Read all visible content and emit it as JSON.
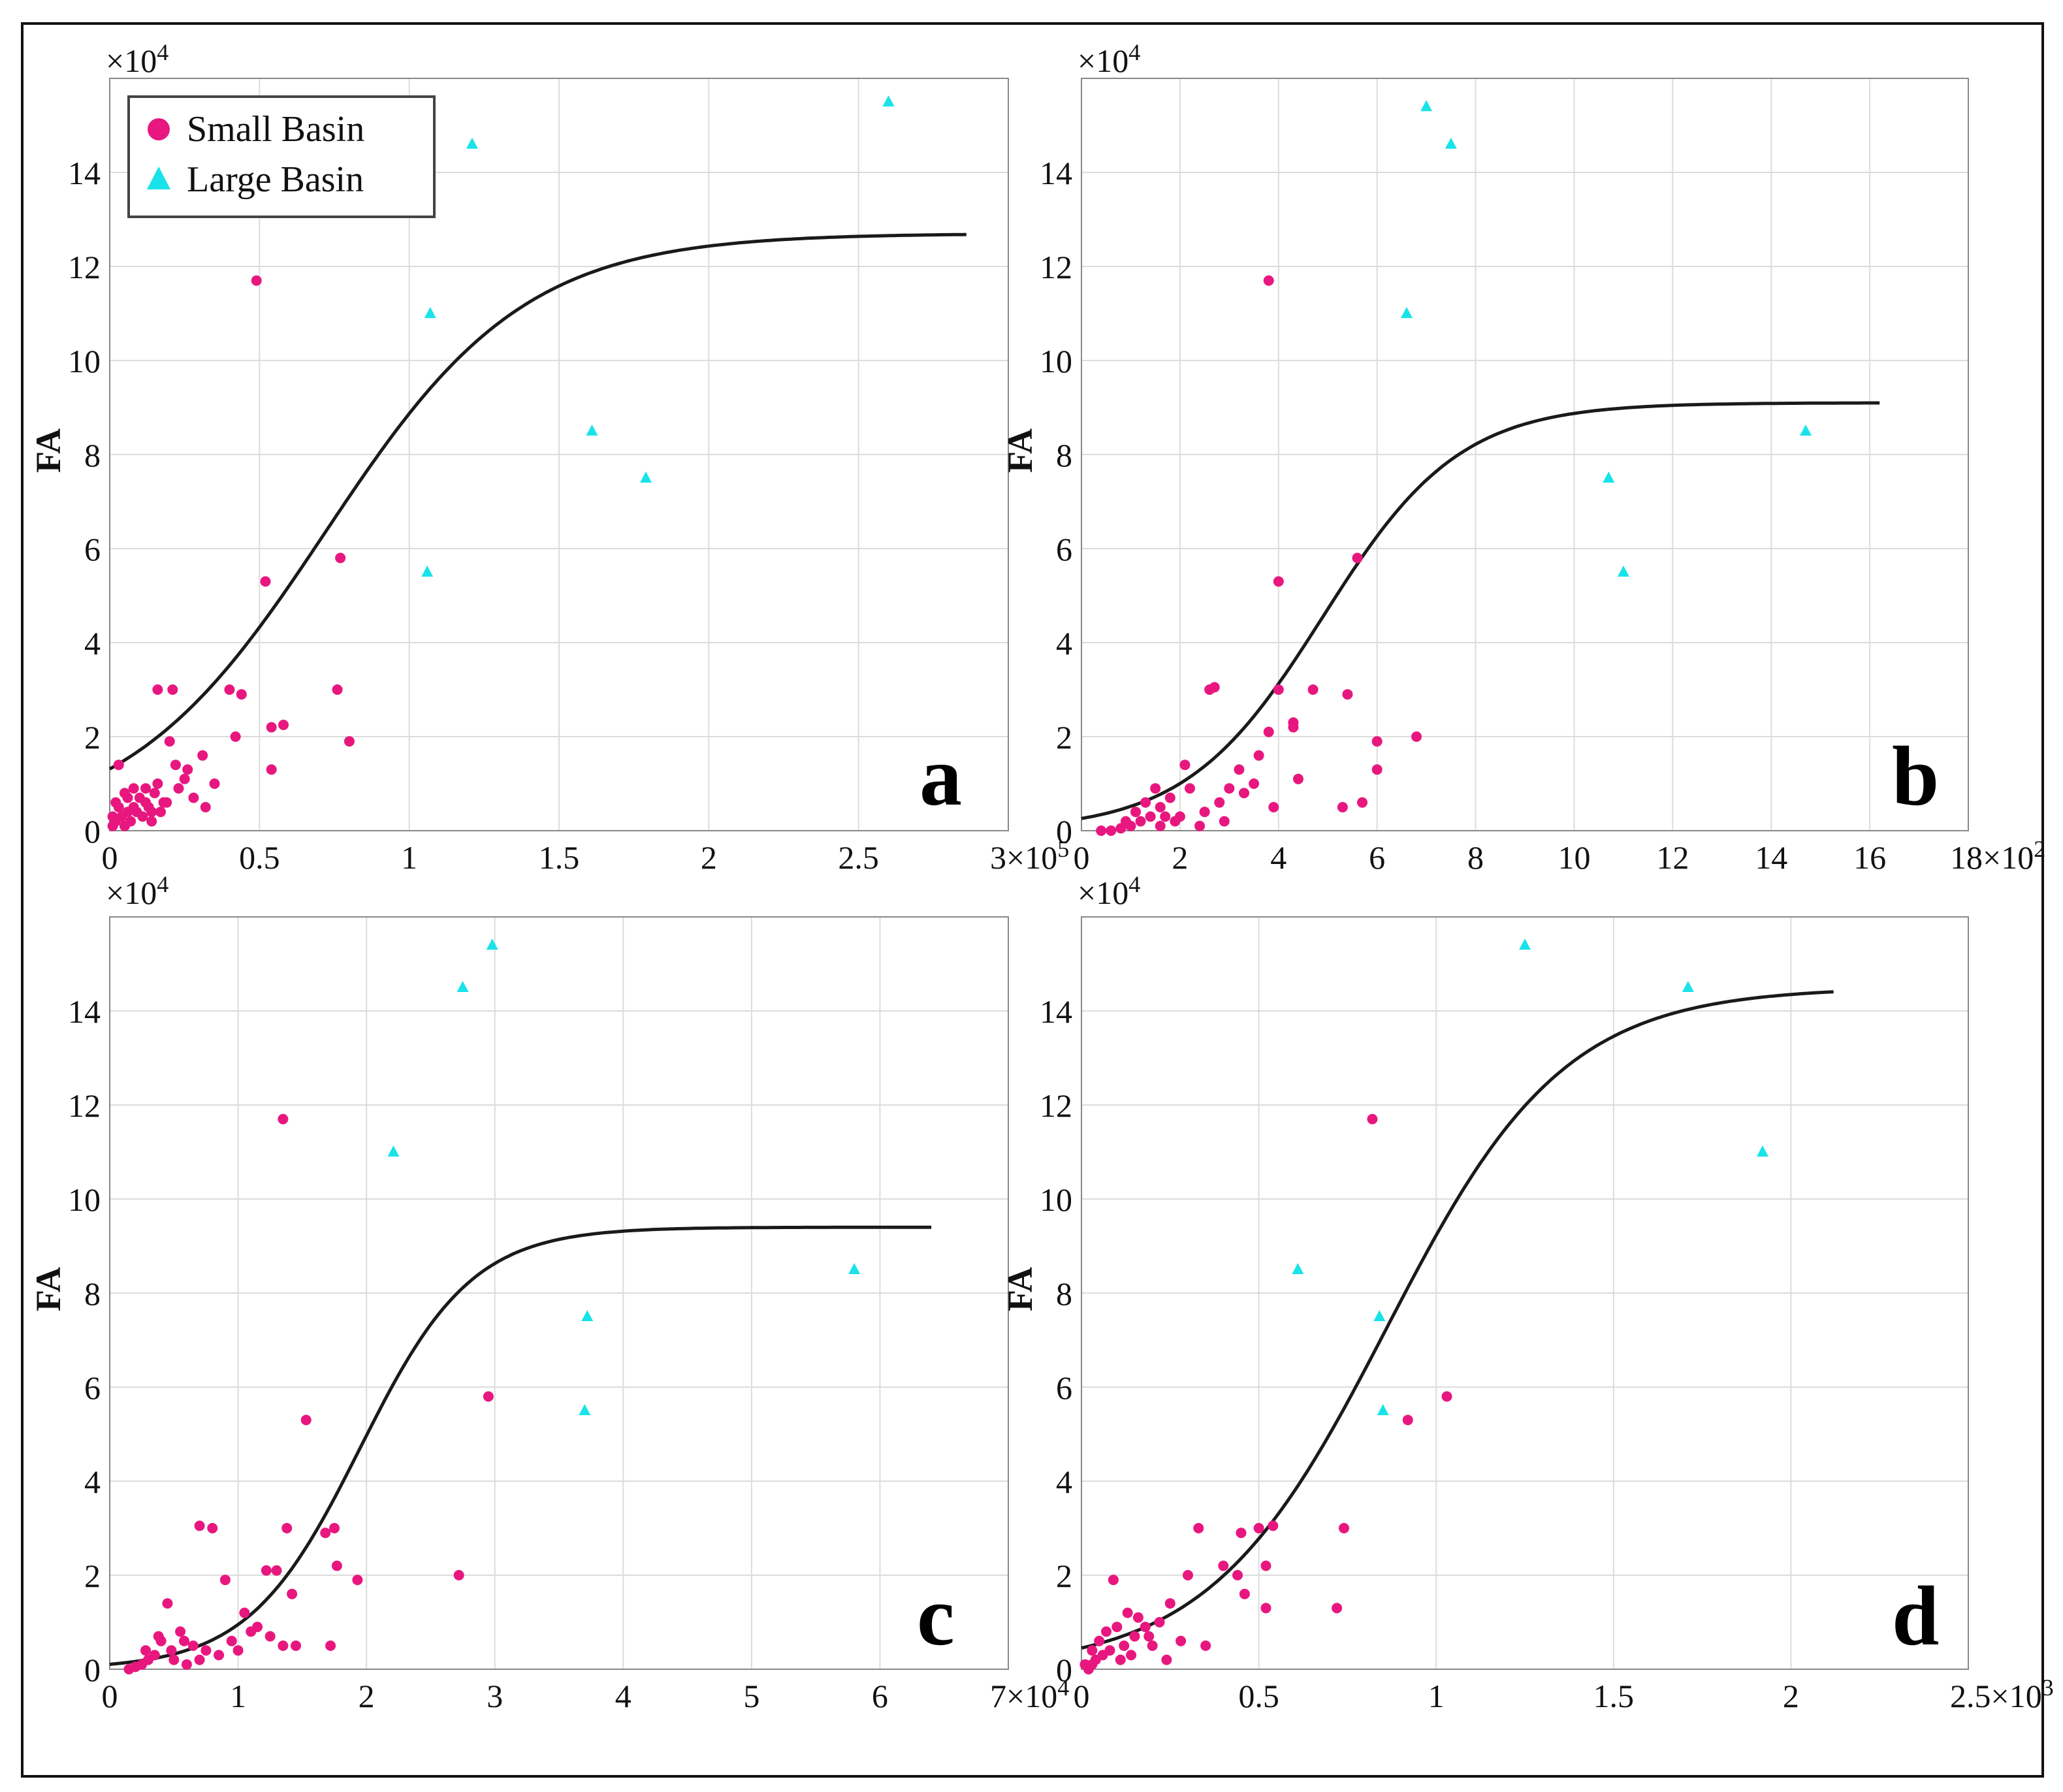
{
  "figure": {
    "colors": {
      "small": "#e8177f",
      "large": "#19e3e8",
      "curve": "#1a1a1a",
      "grid": "#dcdcdc",
      "frame": "#222222"
    },
    "legend": {
      "small_label": "Small Basin",
      "large_label": "Large Basin",
      "placement": "top-left of panel a"
    }
  },
  "chart_data": [
    {
      "panel": "a",
      "type": "scatter",
      "ylabel": "FA",
      "y_multiplier": "×10^4",
      "xlim": [
        0,
        3
      ],
      "ylim": [
        0,
        16
      ],
      "xticks": [
        0,
        0.5,
        1,
        1.5,
        2,
        2.5,
        3
      ],
      "xtick_labels": [
        "0",
        "0.5",
        "1",
        "1.5",
        "2",
        "2.5",
        "3×10^5"
      ],
      "yticks": [
        0,
        2,
        4,
        6,
        8,
        10,
        12,
        14
      ],
      "ytick_labels": [
        "0",
        "2",
        "4",
        "6",
        "8",
        "10",
        "12",
        "14"
      ],
      "fit": {
        "L": 12.7,
        "k": 3.0,
        "x0": 0.72,
        "x_end": 2.86
      },
      "small_basin": [
        [
          0.49,
          11.7
        ],
        [
          0.52,
          5.3
        ],
        [
          0.77,
          5.8
        ],
        [
          0.76,
          3.0
        ],
        [
          0.8,
          1.9
        ],
        [
          0.54,
          2.2
        ],
        [
          0.58,
          2.25
        ],
        [
          0.54,
          1.3
        ],
        [
          0.4,
          3.0
        ],
        [
          0.44,
          2.9
        ],
        [
          0.42,
          2.0
        ],
        [
          0.16,
          3.0
        ],
        [
          0.21,
          3.0
        ],
        [
          0.2,
          1.9
        ],
        [
          0.22,
          1.4
        ],
        [
          0.31,
          1.6
        ],
        [
          0.35,
          1.0
        ],
        [
          0.32,
          0.5
        ],
        [
          0.28,
          0.7
        ],
        [
          0.25,
          1.1
        ],
        [
          0.23,
          0.9
        ],
        [
          0.18,
          0.6
        ],
        [
          0.15,
          0.8
        ],
        [
          0.12,
          0.9
        ],
        [
          0.1,
          0.7
        ],
        [
          0.08,
          0.5
        ],
        [
          0.06,
          0.4
        ],
        [
          0.05,
          0.8
        ],
        [
          0.04,
          0.3
        ],
        [
          0.03,
          0.5
        ],
        [
          0.02,
          0.2
        ],
        [
          0.01,
          0.1
        ],
        [
          0.03,
          1.4
        ],
        [
          0.07,
          0.2
        ],
        [
          0.09,
          0.4
        ],
        [
          0.11,
          0.3
        ],
        [
          0.13,
          0.5
        ],
        [
          0.14,
          0.2
        ],
        [
          0.17,
          0.4
        ],
        [
          0.19,
          0.6
        ],
        [
          0.02,
          0.6
        ],
        [
          0.05,
          0.1
        ],
        [
          0.08,
          0.9
        ],
        [
          0.12,
          0.6
        ],
        [
          0.16,
          1.0
        ],
        [
          0.26,
          1.3
        ],
        [
          0.14,
          0.4
        ],
        [
          0.06,
          0.7
        ],
        [
          0.01,
          0.3
        ]
      ],
      "large_basin": [
        [
          2.6,
          15.5
        ],
        [
          1.21,
          14.6
        ],
        [
          1.07,
          11.0
        ],
        [
          1.61,
          8.5
        ],
        [
          1.79,
          7.5
        ],
        [
          1.06,
          5.5
        ]
      ]
    },
    {
      "panel": "b",
      "type": "scatter",
      "ylabel": "FA",
      "y_multiplier": "×10^4",
      "xlim": [
        0,
        18
      ],
      "ylim": [
        0,
        16
      ],
      "xticks": [
        0,
        2,
        4,
        6,
        8,
        10,
        12,
        14,
        16,
        18
      ],
      "xtick_labels": [
        "0",
        "2",
        "4",
        "6",
        "8",
        "10",
        "12",
        "14",
        "16",
        "18×10^2"
      ],
      "yticks": [
        0,
        2,
        4,
        6,
        8,
        10,
        12,
        14
      ],
      "ytick_labels": [
        "0",
        "2",
        "4",
        "6",
        "8",
        "10",
        "12",
        "14"
      ],
      "fit": {
        "L": 9.1,
        "k": 0.72,
        "x0": 4.9,
        "x_end": 16.2
      },
      "small_basin": [
        [
          3.8,
          11.7
        ],
        [
          4.0,
          5.3
        ],
        [
          5.6,
          5.8
        ],
        [
          4.0,
          3.0
        ],
        [
          2.6,
          3.0
        ],
        [
          2.7,
          3.05
        ],
        [
          4.7,
          3.0
        ],
        [
          5.4,
          2.9
        ],
        [
          6.8,
          2.0
        ],
        [
          6.0,
          1.9
        ],
        [
          6.0,
          1.3
        ],
        [
          4.3,
          2.2
        ],
        [
          4.3,
          2.3
        ],
        [
          3.8,
          2.1
        ],
        [
          3.6,
          1.6
        ],
        [
          3.2,
          1.3
        ],
        [
          4.4,
          1.1
        ],
        [
          5.3,
          0.5
        ],
        [
          5.7,
          0.6
        ],
        [
          3.9,
          0.5
        ],
        [
          3.0,
          0.9
        ],
        [
          2.8,
          0.6
        ],
        [
          2.5,
          0.4
        ],
        [
          2.2,
          0.9
        ],
        [
          2.0,
          0.3
        ],
        [
          1.8,
          0.7
        ],
        [
          1.6,
          0.5
        ],
        [
          1.4,
          0.3
        ],
        [
          1.2,
          0.2
        ],
        [
          1.0,
          0.1
        ],
        [
          0.8,
          0.05
        ],
        [
          0.6,
          0.0
        ],
        [
          1.5,
          0.9
        ],
        [
          2.1,
          1.4
        ],
        [
          3.3,
          0.8
        ],
        [
          2.4,
          0.1
        ],
        [
          1.9,
          0.2
        ],
        [
          1.1,
          0.4
        ],
        [
          1.3,
          0.6
        ],
        [
          1.7,
          0.3
        ],
        [
          0.9,
          0.2
        ],
        [
          2.9,
          0.2
        ],
        [
          3.5,
          1.0
        ],
        [
          0.4,
          0.0
        ],
        [
          1.6,
          0.1
        ]
      ],
      "large_basin": [
        [
          7.0,
          15.4
        ],
        [
          7.5,
          14.6
        ],
        [
          6.6,
          11.0
        ],
        [
          14.7,
          8.5
        ],
        [
          10.7,
          7.5
        ],
        [
          11.0,
          5.5
        ]
      ]
    },
    {
      "panel": "c",
      "type": "scatter",
      "ylabel": "FA",
      "y_multiplier": "×10^4",
      "xlim": [
        0,
        7
      ],
      "ylim": [
        0,
        16
      ],
      "xticks": [
        0,
        1,
        2,
        3,
        4,
        5,
        6,
        7
      ],
      "xtick_labels": [
        "0",
        "1",
        "2",
        "3",
        "4",
        "5",
        "6",
        "7×10^4"
      ],
      "yticks": [
        0,
        2,
        4,
        6,
        8,
        10,
        12,
        14
      ],
      "ytick_labels": [
        "0",
        "2",
        "4",
        "6",
        "8",
        "10",
        "12",
        "14"
      ],
      "fit": {
        "L": 9.4,
        "k": 2.3,
        "x0": 1.95,
        "x_end": 6.4
      },
      "small_basin": [
        [
          1.35,
          11.7
        ],
        [
          1.53,
          5.3
        ],
        [
          2.95,
          5.8
        ],
        [
          2.72,
          2.0
        ],
        [
          1.38,
          3.0
        ],
        [
          0.7,
          3.05
        ],
        [
          0.8,
          3.0
        ],
        [
          1.75,
          3.0
        ],
        [
          1.68,
          2.9
        ],
        [
          1.77,
          2.2
        ],
        [
          1.93,
          1.9
        ],
        [
          1.3,
          2.1
        ],
        [
          1.22,
          2.1
        ],
        [
          0.9,
          1.9
        ],
        [
          1.42,
          1.6
        ],
        [
          1.05,
          1.2
        ],
        [
          1.15,
          0.9
        ],
        [
          1.25,
          0.7
        ],
        [
          1.35,
          0.5
        ],
        [
          1.45,
          0.5
        ],
        [
          1.72,
          0.5
        ],
        [
          0.95,
          0.6
        ],
        [
          0.85,
          0.3
        ],
        [
          0.75,
          0.4
        ],
        [
          0.65,
          0.5
        ],
        [
          0.55,
          0.8
        ],
        [
          0.45,
          1.4
        ],
        [
          0.4,
          0.6
        ],
        [
          0.35,
          0.3
        ],
        [
          0.3,
          0.2
        ],
        [
          0.25,
          0.1
        ],
        [
          0.2,
          0.05
        ],
        [
          0.5,
          0.2
        ],
        [
          0.6,
          0.1
        ],
        [
          0.7,
          0.2
        ],
        [
          1.0,
          0.4
        ],
        [
          1.1,
          0.8
        ],
        [
          0.38,
          0.7
        ],
        [
          0.48,
          0.4
        ],
        [
          0.58,
          0.6
        ],
        [
          0.15,
          0.0
        ],
        [
          0.28,
          0.4
        ]
      ],
      "large_basin": [
        [
          2.98,
          15.4
        ],
        [
          2.75,
          14.5
        ],
        [
          2.21,
          11.0
        ],
        [
          5.8,
          8.5
        ],
        [
          3.72,
          7.5
        ],
        [
          3.7,
          5.5
        ]
      ]
    },
    {
      "panel": "d",
      "type": "scatter",
      "ylabel": "FA",
      "y_multiplier": "×10^4",
      "xlim": [
        0,
        2.5
      ],
      "ylim": [
        0,
        16
      ],
      "xticks": [
        0,
        0.5,
        1,
        1.5,
        2,
        2.5
      ],
      "xtick_labels": [
        "0",
        "0.5",
        "1",
        "1.5",
        "2",
        "2.5×10^3"
      ],
      "yticks": [
        0,
        2,
        4,
        6,
        8,
        10,
        12,
        14
      ],
      "ytick_labels": [
        "0",
        "2",
        "4",
        "6",
        "8",
        "10",
        "12",
        "14"
      ],
      "fit": {
        "L": 14.5,
        "k": 4.0,
        "x0": 0.86,
        "x_end": 2.12
      },
      "small_basin": [
        [
          0.82,
          11.7
        ],
        [
          1.03,
          5.8
        ],
        [
          0.92,
          5.3
        ],
        [
          0.74,
          3.0
        ],
        [
          0.54,
          3.05
        ],
        [
          0.5,
          3.0
        ],
        [
          0.45,
          2.9
        ],
        [
          0.33,
          3.0
        ],
        [
          0.3,
          2.0
        ],
        [
          0.4,
          2.2
        ],
        [
          0.44,
          2.0
        ],
        [
          0.46,
          1.6
        ],
        [
          0.52,
          2.2
        ],
        [
          0.52,
          1.3
        ],
        [
          0.72,
          1.3
        ],
        [
          0.25,
          1.4
        ],
        [
          0.22,
          1.0
        ],
        [
          0.18,
          0.9
        ],
        [
          0.15,
          0.7
        ],
        [
          0.12,
          0.5
        ],
        [
          0.1,
          0.9
        ],
        [
          0.08,
          0.4
        ],
        [
          0.06,
          0.3
        ],
        [
          0.05,
          0.6
        ],
        [
          0.04,
          0.2
        ],
        [
          0.03,
          0.1
        ],
        [
          0.02,
          0.0
        ],
        [
          0.09,
          1.9
        ],
        [
          0.14,
          0.3
        ],
        [
          0.16,
          1.1
        ],
        [
          0.2,
          0.5
        ],
        [
          0.28,
          0.6
        ],
        [
          0.35,
          0.5
        ],
        [
          0.11,
          0.2
        ],
        [
          0.07,
          0.8
        ],
        [
          0.13,
          1.2
        ],
        [
          0.24,
          0.2
        ],
        [
          0.19,
          0.7
        ],
        [
          0.01,
          0.1
        ],
        [
          0.03,
          0.4
        ]
      ],
      "large_basin": [
        [
          1.25,
          15.4
        ],
        [
          1.71,
          14.5
        ],
        [
          1.92,
          11.0
        ],
        [
          0.61,
          8.5
        ],
        [
          0.84,
          7.5
        ],
        [
          0.85,
          5.5
        ]
      ]
    }
  ]
}
